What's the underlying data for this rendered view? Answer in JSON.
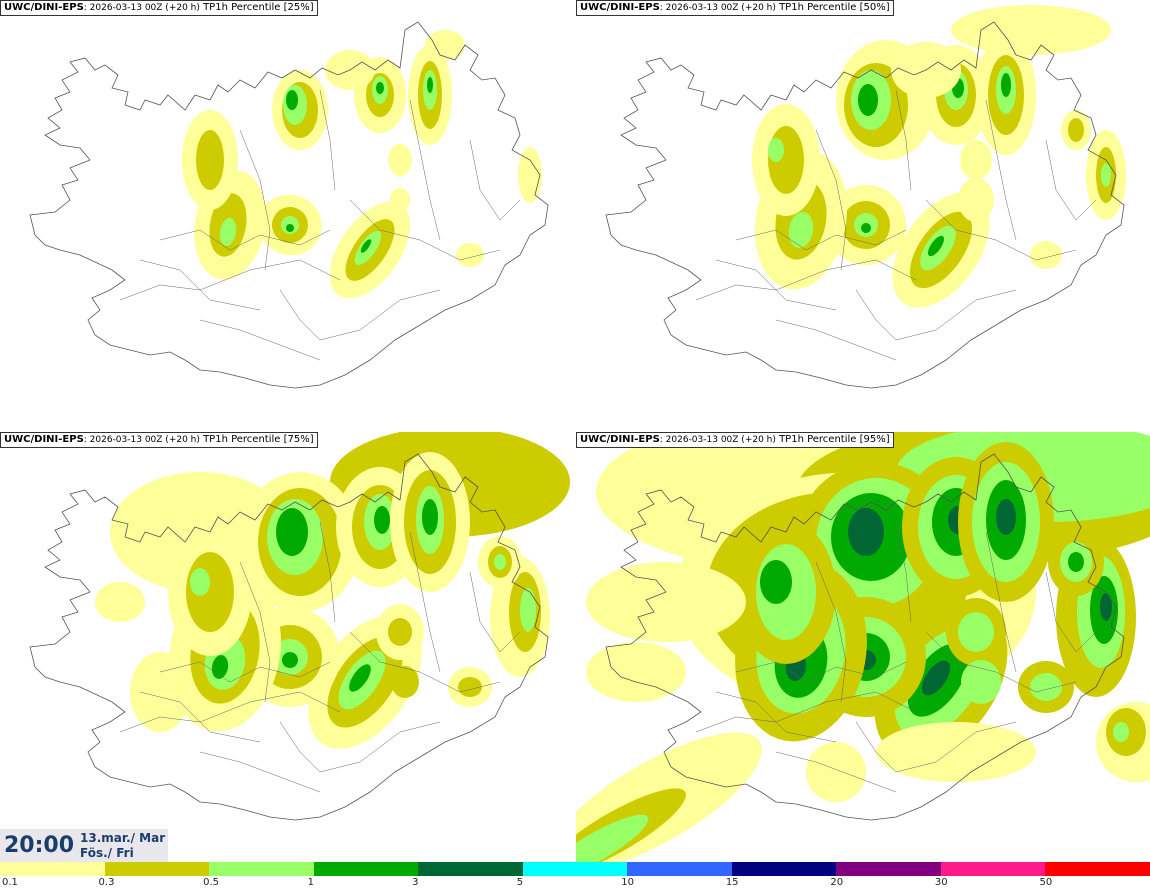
{
  "panels": [
    {
      "model": "UWC/DINI-EPS",
      "run": ": 2026-03-13 00Z (+20 h)",
      "variable": " TP1h Percentile [25%]"
    },
    {
      "model": "UWC/DINI-EPS",
      "run": ": 2026-03-13 00Z (+20 h)",
      "variable": " TP1h Percentile [50%]"
    },
    {
      "model": "UWC/DINI-EPS",
      "run": ": 2026-03-13 00Z (+20 h)",
      "variable": " TP1h Percentile [75%]"
    },
    {
      "model": "UWC/DINI-EPS",
      "run": ": 2026-03-13 00Z (+20 h)",
      "variable": " TP1h Percentile [95%]"
    }
  ],
  "timestamp": {
    "time": "20:00",
    "date_line1": "13.mar./ Mar",
    "date_line2": "Fös./ Fri"
  },
  "legend": {
    "ticks": [
      "0.1",
      "0.3",
      "0.5",
      "1",
      "3",
      "5",
      "10",
      "15",
      "20",
      "30",
      "50"
    ],
    "colors": [
      "#ffff99",
      "#cccc00",
      "#99ff66",
      "#00aa00",
      "#006633",
      "#00ffff",
      "#3366ff",
      "#000080",
      "#800080",
      "#ff1a8c",
      "#ff0000"
    ]
  }
}
